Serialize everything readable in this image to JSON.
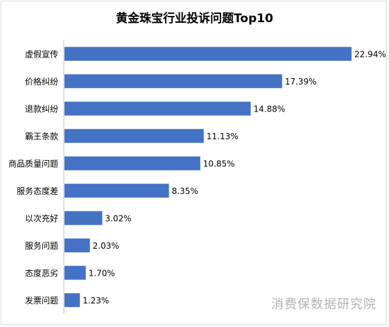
{
  "chart_data": {
    "type": "bar",
    "orientation": "horizontal",
    "title": "黄金珠宝行业投诉问题Top10",
    "categories": [
      "虚假宣传",
      "价格纠纷",
      "退款纠纷",
      "霸王条款",
      "商品质量问题",
      "服务态度差",
      "以次充好",
      "服务问题",
      "态度恶劣",
      "发票问题"
    ],
    "values": [
      22.94,
      17.39,
      14.88,
      11.13,
      10.85,
      8.35,
      3.02,
      2.03,
      1.7,
      1.23
    ],
    "data_labels": [
      "22.94%",
      "17.39%",
      "14.88%",
      "11.13%",
      "10.85%",
      "8.35%",
      "3.02%",
      "2.03%",
      "1.70%",
      "1.23%"
    ],
    "value_unit": "%",
    "xlim": [
      0,
      22.94
    ],
    "grid": false,
    "legend": "none",
    "bar_color": "#4472C4"
  },
  "watermark": "消费保数据研究院"
}
